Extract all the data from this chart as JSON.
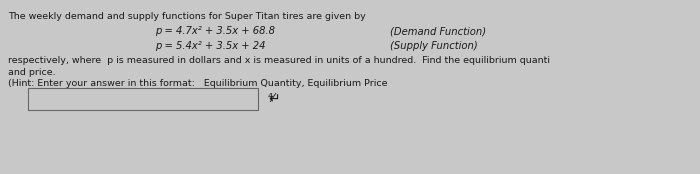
{
  "title_line": "The weekly demand and supply functions for Super Titan tires are given by",
  "demand_eq": "p = 4.7x² + 3.5x + 68.8",
  "demand_label": "(Demand Function)",
  "supply_eq": "p = 5.4x² + 3.5x + 24",
  "supply_label": "(Supply Function)",
  "body_line1": "respectively, where  p is measured in dollars and x is measured in units of a hundred.  Find the equilibrium quanti",
  "body_line2": "and price.",
  "hint_line": "(Hint: Enter your answer in this format:   Equilibrium Quantity, Equilibrium Price",
  "bg_color": "#c8c8c8",
  "text_color": "#1a1a1a",
  "fs_main": 6.8,
  "fs_eq": 7.2,
  "fs_label": 7.2
}
